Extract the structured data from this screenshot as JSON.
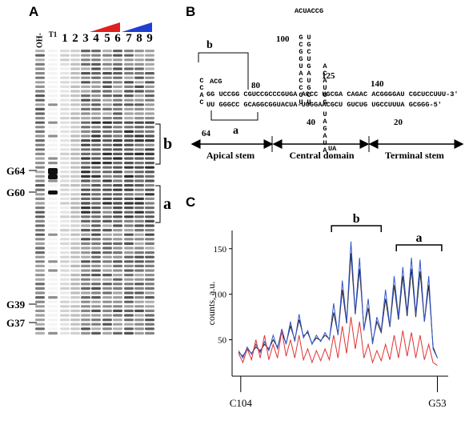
{
  "panel_a": {
    "label": "A",
    "lanes": [
      "OH-",
      "T1",
      "1",
      "2",
      "3",
      "4",
      "5",
      "6",
      "7",
      "8",
      "9"
    ],
    "markers": [
      "G64",
      "G60",
      "G39",
      "G37"
    ],
    "regions": [
      "b",
      "a"
    ]
  },
  "panel_b": {
    "label": "B",
    "bracket_labels": [
      "b",
      "a"
    ],
    "numbers": [
      80,
      100,
      125,
      140,
      64,
      40,
      20
    ],
    "top_strand": "GG UCCGG CGUCCGCCCGUGA ACCC UGCGA CAGAC ACGGGGAU CGCUCCUUU-3'",
    "bottom_strand": "UU GGGCC GCAGGCGGUACUA-UGGGAACGCU GUCUG UGCCUUUA GCGGG-5'",
    "stem_5": "GCGGUACCGU",
    "stem_3": "UGCUGAUGCU",
    "hairpin_loop": "ACUACCG",
    "apical_loop": "CCAC",
    "apical_tail": "ACG",
    "bulge_up": "ACAUGG",
    "bulge_down": "UAGAUA",
    "bulge_end": "UA",
    "domains": [
      "Apical stem",
      "Central domain",
      "Terminal stem"
    ]
  },
  "chart_data": {
    "type": "line",
    "panel_label": "C",
    "y_label": "counts, a.u.",
    "xlim": [
      0,
      100
    ],
    "xticks": [
      {
        "value": 4,
        "label": "C104"
      },
      {
        "value": 95,
        "label": "G53"
      }
    ],
    "ylim": [
      10,
      170
    ],
    "yticks": [
      50,
      100,
      150
    ],
    "annotations": [
      "b",
      "a"
    ],
    "x": [
      3,
      5,
      7,
      9,
      11,
      13,
      15,
      17,
      19,
      21,
      23,
      25,
      27,
      29,
      31,
      33,
      35,
      37,
      39,
      41,
      43,
      45,
      47,
      49,
      51,
      53,
      55,
      57,
      59,
      61,
      63,
      65,
      67,
      69,
      71,
      73,
      75,
      77,
      79,
      81,
      83,
      85,
      87,
      89,
      91,
      93,
      95
    ],
    "series": [
      {
        "color": "#222222",
        "values": [
          36,
          32,
          40,
          35,
          42,
          38,
          45,
          40,
          50,
          42,
          58,
          46,
          65,
          50,
          72,
          54,
          58,
          46,
          52,
          49,
          55,
          51,
          80,
          56,
          105,
          68,
          145,
          78,
          128,
          62,
          85,
          48,
          70,
          58,
          95,
          64,
          110,
          72,
          120,
          76,
          128,
          75,
          125,
          70,
          110,
          42,
          30
        ]
      },
      {
        "color": "#3355cc",
        "values": [
          38,
          30,
          42,
          34,
          45,
          36,
          48,
          38,
          55,
          40,
          62,
          45,
          70,
          48,
          78,
          52,
          60,
          45,
          55,
          48,
          58,
          50,
          90,
          55,
          115,
          70,
          158,
          80,
          140,
          60,
          95,
          45,
          75,
          60,
          105,
          65,
          120,
          75,
          130,
          80,
          140,
          78,
          138,
          70,
          120,
          40,
          30
        ]
      },
      {
        "color": "#e03333",
        "values": [
          35,
          25,
          40,
          28,
          50,
          30,
          55,
          28,
          45,
          30,
          60,
          32,
          50,
          30,
          55,
          28,
          40,
          25,
          38,
          27,
          40,
          28,
          55,
          30,
          65,
          35,
          75,
          40,
          70,
          30,
          45,
          25,
          38,
          27,
          45,
          28,
          55,
          30,
          60,
          32,
          58,
          30,
          55,
          28,
          45,
          25,
          22
        ]
      }
    ]
  }
}
